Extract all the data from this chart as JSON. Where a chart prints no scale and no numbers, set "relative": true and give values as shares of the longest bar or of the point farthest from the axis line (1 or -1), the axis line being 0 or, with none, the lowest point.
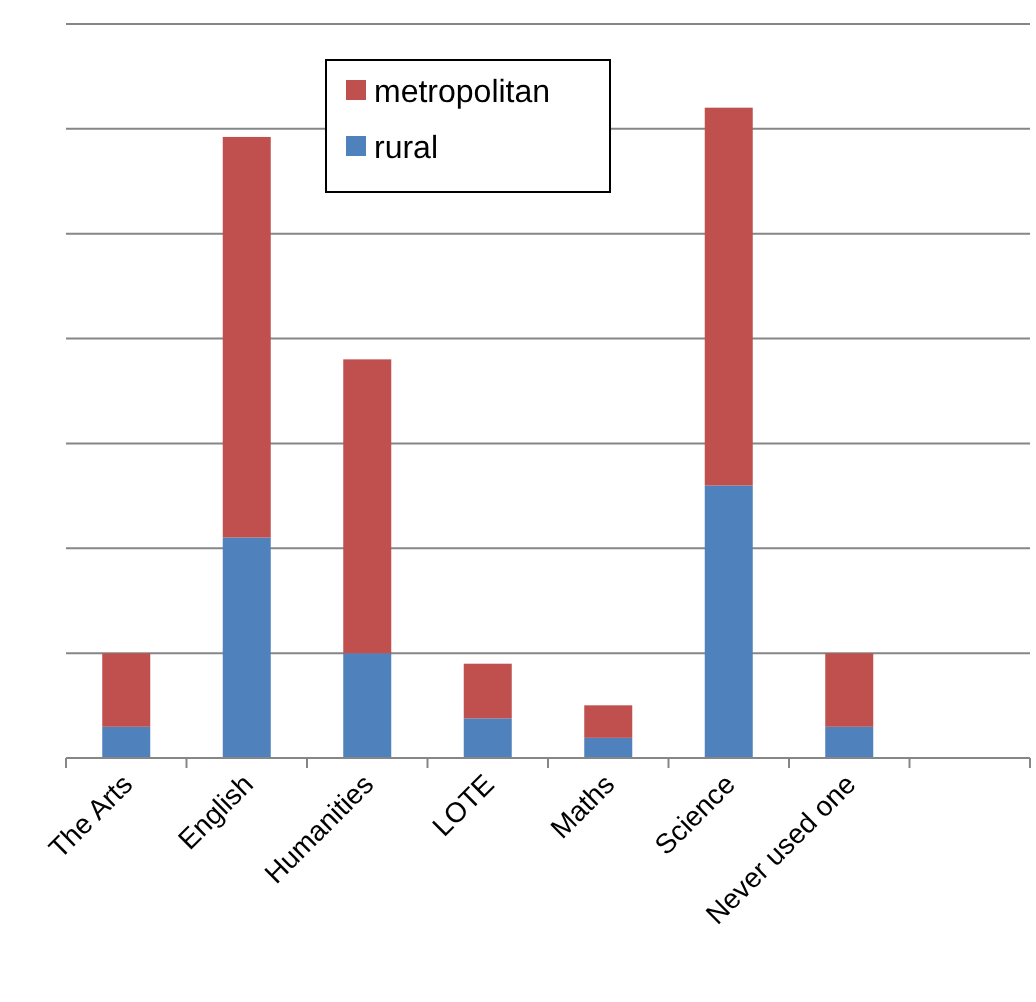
{
  "chart_data": {
    "type": "bar",
    "stacked": true,
    "relative": true,
    "grid": "y",
    "legend": "top",
    "categories": [
      "The Arts",
      "English",
      "Humanities",
      "LOTE",
      "Maths",
      "Science",
      "Never used one",
      null
    ],
    "series": [
      {
        "name": "rural",
        "color": "#4f81bd",
        "values": [
          0.048,
          0.339,
          0.161,
          0.061,
          0.031,
          0.419,
          0.048,
          null
        ]
      },
      {
        "name": "metropolitan",
        "color": "#c0504d",
        "values": [
          0.113,
          0.616,
          0.452,
          0.084,
          0.05,
          0.581,
          0.113,
          null
        ]
      }
    ]
  }
}
